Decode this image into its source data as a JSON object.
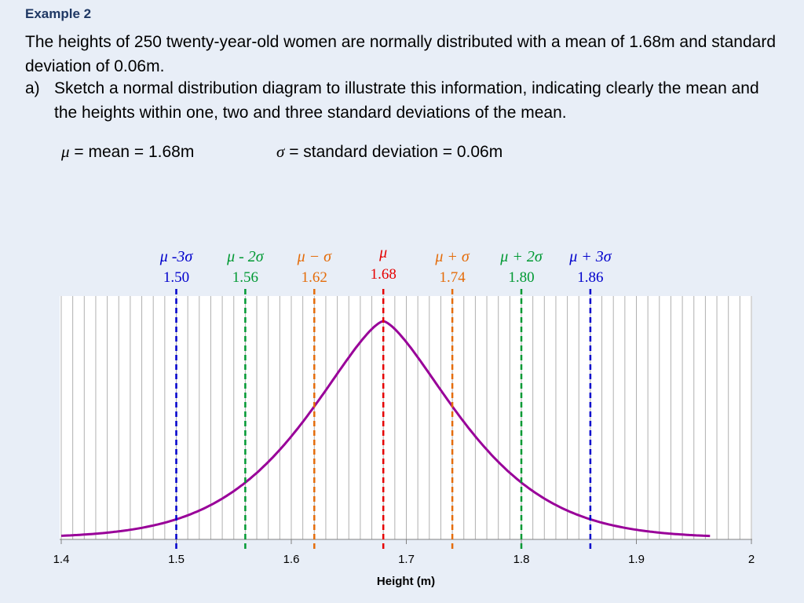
{
  "heading": "Example 2",
  "paragraph": "The heights of 250 twenty-year-old women are normally distributed with a mean of 1.68m and standard deviation of 0.06m.",
  "item": {
    "label": "a)",
    "text": "Sketch a normal distribution diagram to illustrate this information, indicating clearly the mean and the heights within one, two and three standard deviations of the mean."
  },
  "formulas": {
    "mean_symbol": "μ",
    "mean_text": " = mean = 1.68m",
    "sd_symbol": "σ",
    "sd_text": " = standard deviation = 0.06m"
  },
  "chart_data": {
    "type": "line",
    "title": "",
    "xlabel": "Height (m)",
    "ylabel": "",
    "xlim": [
      1.4,
      2.0
    ],
    "x_ticks": [
      "1.4",
      "1.5",
      "1.6",
      "1.7",
      "1.8",
      "1.9",
      "2"
    ],
    "grid": true,
    "curve": {
      "mean": 1.68,
      "sd": 0.06,
      "x_range": [
        1.4,
        1.965
      ],
      "color": "#990099"
    },
    "markers": [
      {
        "label": "μ -3σ",
        "value": "1.50",
        "x": 1.5,
        "color": "#0000cc"
      },
      {
        "label": "μ - 2σ",
        "value": "1.56",
        "x": 1.56,
        "color": "#009933"
      },
      {
        "label": "μ − σ",
        "value": "1.62",
        "x": 1.62,
        "color": "#e46c0a"
      },
      {
        "label": "μ",
        "value": "1.68",
        "x": 1.68,
        "color": "#e60000"
      },
      {
        "label": "μ + σ",
        "value": "1.74",
        "x": 1.74,
        "color": "#e46c0a"
      },
      {
        "label": "μ + 2σ",
        "value": "1.80",
        "x": 1.8,
        "color": "#009933"
      },
      {
        "label": "μ + 3σ",
        "value": "1.86",
        "x": 1.86,
        "color": "#0000cc"
      }
    ]
  }
}
